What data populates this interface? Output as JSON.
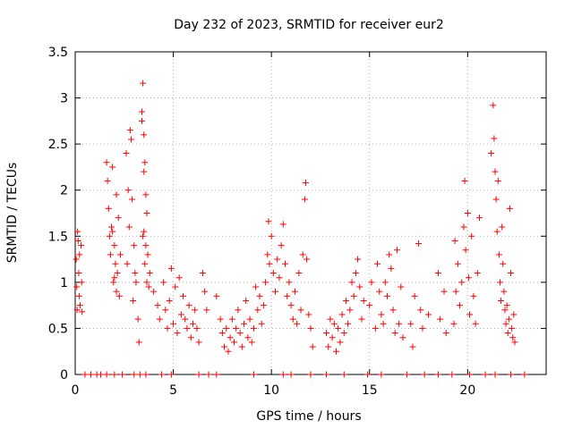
{
  "chart_data": {
    "type": "scatter",
    "title": "Day 232 of 2023, SRMTID for receiver eur2",
    "xlabel": "GPS time / hours",
    "ylabel": "SRMTID / TECUs",
    "xlim": [
      0,
      24
    ],
    "ylim": [
      0,
      3.5
    ],
    "grid": true,
    "marker": "+",
    "color": "#ff0000",
    "x_ticks": [
      0,
      5,
      10,
      15,
      20
    ],
    "x_tick_labels": [
      "0",
      "5",
      "10",
      "15",
      "20"
    ],
    "y_ticks": [
      0,
      0.5,
      1,
      1.5,
      2,
      2.5,
      3,
      3.5
    ],
    "y_tick_labels": [
      "0",
      "0.5",
      "1",
      "1.5",
      "2",
      "2.5",
      "3",
      "3.5"
    ],
    "series": [
      {
        "name": "SRMTID",
        "points": [
          [
            0.05,
            1.25
          ],
          [
            0.08,
            0.95
          ],
          [
            0.1,
            0.7
          ],
          [
            0.12,
            1.55
          ],
          [
            0.15,
            1.45
          ],
          [
            0.18,
            1.1
          ],
          [
            0.2,
            0.85
          ],
          [
            0.22,
            1.3
          ],
          [
            0.25,
            0.75
          ],
          [
            0.3,
            1.4
          ],
          [
            0.33,
            1.0
          ],
          [
            0.35,
            0.68
          ],
          [
            1.6,
            2.3
          ],
          [
            1.65,
            2.1
          ],
          [
            1.7,
            1.8
          ],
          [
            1.75,
            1.5
          ],
          [
            1.8,
            1.3
          ],
          [
            1.85,
            1.6
          ],
          [
            1.9,
            2.25
          ],
          [
            1.95,
            1.0
          ],
          [
            2.0,
            1.4
          ],
          [
            2.05,
            1.2
          ],
          [
            2.1,
            0.9
          ],
          [
            2.15,
            1.1
          ],
          [
            2.2,
            1.7
          ],
          [
            2.25,
            0.85
          ],
          [
            2.3,
            1.3
          ],
          [
            2.1,
            1.95
          ],
          [
            1.9,
            1.55
          ],
          [
            2.0,
            1.05
          ],
          [
            2.6,
            2.4
          ],
          [
            2.7,
            2.0
          ],
          [
            2.8,
            2.65
          ],
          [
            2.85,
            2.55
          ],
          [
            2.9,
            1.9
          ],
          [
            3.0,
            1.4
          ],
          [
            3.05,
            1.1
          ],
          [
            2.95,
            0.8
          ],
          [
            3.1,
            1.0
          ],
          [
            3.2,
            0.6
          ],
          [
            3.25,
            0.35
          ],
          [
            2.75,
            1.6
          ],
          [
            2.65,
            1.2
          ],
          [
            3.4,
            2.85
          ],
          [
            3.45,
            3.16
          ],
          [
            3.5,
            2.6
          ],
          [
            3.55,
            2.3
          ],
          [
            3.6,
            1.95
          ],
          [
            3.65,
            1.75
          ],
          [
            3.5,
            1.55
          ],
          [
            3.45,
            1.5
          ],
          [
            3.6,
            1.4
          ],
          [
            3.7,
            1.3
          ],
          [
            3.55,
            1.2
          ],
          [
            3.65,
            1.0
          ],
          [
            3.4,
            2.75
          ],
          [
            3.5,
            2.2
          ],
          [
            3.75,
            0.95
          ],
          [
            3.8,
            1.1
          ],
          [
            4.0,
            0.9
          ],
          [
            4.2,
            0.75
          ],
          [
            4.3,
            0.6
          ],
          [
            4.5,
            1.0
          ],
          [
            4.6,
            0.7
          ],
          [
            4.7,
            0.5
          ],
          [
            4.8,
            0.8
          ],
          [
            4.9,
            1.15
          ],
          [
            5.0,
            0.55
          ],
          [
            5.1,
            0.95
          ],
          [
            5.2,
            0.45
          ],
          [
            5.3,
            1.05
          ],
          [
            5.4,
            0.65
          ],
          [
            5.5,
            0.85
          ],
          [
            5.6,
            0.6
          ],
          [
            5.7,
            0.5
          ],
          [
            5.8,
            0.75
          ],
          [
            5.9,
            0.4
          ],
          [
            6.0,
            0.55
          ],
          [
            6.1,
            0.7
          ],
          [
            6.2,
            0.5
          ],
          [
            6.3,
            0.35
          ],
          [
            6.5,
            1.1
          ],
          [
            6.6,
            0.9
          ],
          [
            6.7,
            0.7
          ],
          [
            7.2,
            0.85
          ],
          [
            7.4,
            0.6
          ],
          [
            7.5,
            0.45
          ],
          [
            7.6,
            0.3
          ],
          [
            7.7,
            0.5
          ],
          [
            7.8,
            0.25
          ],
          [
            7.9,
            0.4
          ],
          [
            8.0,
            0.6
          ],
          [
            8.1,
            0.35
          ],
          [
            8.2,
            0.5
          ],
          [
            8.3,
            0.7
          ],
          [
            8.4,
            0.45
          ],
          [
            8.5,
            0.3
          ],
          [
            8.6,
            0.55
          ],
          [
            8.7,
            0.8
          ],
          [
            8.8,
            0.4
          ],
          [
            8.9,
            0.6
          ],
          [
            9.0,
            0.35
          ],
          [
            9.1,
            0.5
          ],
          [
            9.2,
            0.95
          ],
          [
            9.3,
            0.7
          ],
          [
            9.4,
            0.85
          ],
          [
            9.5,
            0.55
          ],
          [
            9.6,
            0.75
          ],
          [
            9.7,
            1.0
          ],
          [
            9.8,
            1.3
          ],
          [
            9.85,
            1.66
          ],
          [
            9.9,
            1.2
          ],
          [
            10.0,
            1.5
          ],
          [
            10.1,
            1.1
          ],
          [
            10.2,
            0.9
          ],
          [
            10.3,
            1.25
          ],
          [
            10.4,
            1.05
          ],
          [
            10.5,
            1.4
          ],
          [
            10.6,
            1.63
          ],
          [
            10.7,
            1.2
          ],
          [
            10.8,
            0.85
          ],
          [
            10.9,
            1.0
          ],
          [
            11.0,
            0.75
          ],
          [
            11.1,
            0.6
          ],
          [
            11.2,
            0.9
          ],
          [
            11.3,
            0.55
          ],
          [
            11.4,
            1.1
          ],
          [
            11.5,
            0.7
          ],
          [
            11.6,
            1.3
          ],
          [
            11.7,
            1.9
          ],
          [
            11.75,
            2.08
          ],
          [
            11.8,
            1.25
          ],
          [
            11.9,
            0.65
          ],
          [
            12.0,
            0.5
          ],
          [
            12.1,
            0.3
          ],
          [
            12.8,
            0.45
          ],
          [
            12.9,
            0.3
          ],
          [
            13.0,
            0.6
          ],
          [
            13.1,
            0.4
          ],
          [
            13.2,
            0.55
          ],
          [
            13.3,
            0.25
          ],
          [
            13.4,
            0.5
          ],
          [
            13.5,
            0.35
          ],
          [
            13.6,
            0.65
          ],
          [
            13.7,
            0.45
          ],
          [
            13.8,
            0.8
          ],
          [
            13.9,
            0.55
          ],
          [
            14.0,
            0.7
          ],
          [
            14.1,
            1.0
          ],
          [
            14.2,
            0.85
          ],
          [
            14.3,
            1.1
          ],
          [
            14.4,
            1.25
          ],
          [
            14.5,
            0.95
          ],
          [
            14.6,
            0.6
          ],
          [
            14.7,
            0.8
          ],
          [
            15.0,
            0.75
          ],
          [
            15.1,
            1.0
          ],
          [
            15.3,
            0.5
          ],
          [
            15.4,
            1.2
          ],
          [
            15.5,
            0.9
          ],
          [
            15.6,
            0.65
          ],
          [
            15.7,
            0.55
          ],
          [
            15.8,
            1.0
          ],
          [
            15.9,
            0.85
          ],
          [
            16.0,
            1.3
          ],
          [
            16.1,
            1.15
          ],
          [
            16.2,
            0.7
          ],
          [
            16.3,
            0.45
          ],
          [
            16.4,
            1.35
          ],
          [
            16.5,
            0.55
          ],
          [
            16.6,
            0.95
          ],
          [
            16.7,
            0.4
          ],
          [
            17.1,
            0.55
          ],
          [
            17.2,
            0.3
          ],
          [
            17.3,
            0.85
          ],
          [
            17.5,
            1.42
          ],
          [
            17.6,
            0.7
          ],
          [
            17.7,
            0.5
          ],
          [
            18.0,
            0.65
          ],
          [
            18.5,
            1.1
          ],
          [
            18.6,
            0.6
          ],
          [
            18.8,
            0.9
          ],
          [
            18.9,
            0.45
          ],
          [
            19.3,
            0.55
          ],
          [
            19.35,
            1.45
          ],
          [
            19.4,
            0.9
          ],
          [
            19.5,
            1.2
          ],
          [
            19.6,
            0.75
          ],
          [
            19.7,
            1.0
          ],
          [
            19.8,
            1.6
          ],
          [
            19.85,
            2.1
          ],
          [
            19.9,
            1.35
          ],
          [
            20.0,
            1.75
          ],
          [
            20.05,
            1.05
          ],
          [
            20.1,
            0.65
          ],
          [
            20.2,
            1.5
          ],
          [
            20.3,
            0.85
          ],
          [
            20.4,
            0.55
          ],
          [
            20.5,
            1.1
          ],
          [
            20.6,
            1.7
          ],
          [
            21.2,
            2.4
          ],
          [
            21.3,
            2.92
          ],
          [
            21.35,
            2.56
          ],
          [
            21.4,
            2.2
          ],
          [
            21.45,
            1.9
          ],
          [
            21.5,
            1.55
          ],
          [
            21.55,
            2.1
          ],
          [
            21.6,
            1.3
          ],
          [
            21.65,
            1.0
          ],
          [
            21.7,
            0.8
          ],
          [
            21.75,
            1.6
          ],
          [
            21.8,
            1.2
          ],
          [
            21.85,
            0.9
          ],
          [
            21.9,
            0.7
          ],
          [
            21.95,
            0.55
          ],
          [
            22.0,
            0.75
          ],
          [
            22.05,
            0.45
          ],
          [
            22.1,
            0.6
          ],
          [
            22.15,
            1.8
          ],
          [
            22.2,
            1.1
          ],
          [
            22.25,
            0.5
          ],
          [
            22.3,
            0.4
          ],
          [
            22.35,
            0.65
          ],
          [
            22.4,
            0.35
          ],
          [
            0.5,
            0
          ],
          [
            0.8,
            0
          ],
          [
            1.1,
            0
          ],
          [
            1.3,
            0
          ],
          [
            1.6,
            0
          ],
          [
            2.0,
            0
          ],
          [
            2.4,
            0
          ],
          [
            3.0,
            0
          ],
          [
            3.3,
            0
          ],
          [
            3.6,
            0
          ],
          [
            4.4,
            0
          ],
          [
            4.9,
            0
          ],
          [
            6.3,
            0
          ],
          [
            6.8,
            0
          ],
          [
            7.2,
            0
          ],
          [
            9.1,
            0
          ],
          [
            10.6,
            0
          ],
          [
            11.0,
            0
          ],
          [
            12.0,
            0
          ],
          [
            12.8,
            0
          ],
          [
            13.7,
            0
          ],
          [
            14.9,
            0
          ],
          [
            15.6,
            0
          ],
          [
            16.9,
            0
          ],
          [
            17.8,
            0
          ],
          [
            18.5,
            0
          ],
          [
            19.2,
            0
          ],
          [
            20.1,
            0
          ],
          [
            20.9,
            0
          ],
          [
            21.4,
            0
          ],
          [
            22.2,
            0
          ],
          [
            22.9,
            0
          ]
        ]
      }
    ]
  }
}
